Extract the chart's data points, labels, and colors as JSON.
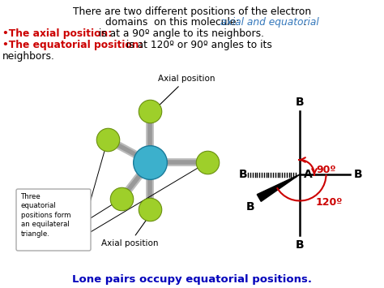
{
  "bg_color": "#ffffff",
  "title_line1": "There are two different positions of the electron",
  "title_line2_black": "domains  on this molecule: ",
  "title_italic": "axial and equatorial",
  "title_dot": ".",
  "bullet1_red": "•The axial position:",
  "bullet1_black": " is at a 90º angle to its neighbors.",
  "bullet2_red": "•The equatorial position:",
  "bullet2_black": " is at 120º or 90º angles to its",
  "bullet2_cont": "neighbors.",
  "axial_label_top": "Axial position",
  "axial_label_bot": "Axial position",
  "box_text": "Three\nequatorial\npositions form\nan equilateral\ntriangle.",
  "footer": "Lone pairs occupy equatorial positions.",
  "footer_color": "#0000bb",
  "red_color": "#cc0000",
  "blue_italic_color": "#3377bb",
  "green_sphere": "#9ecf2a",
  "green_edge": "#6a9010",
  "cyan_sphere": "#3cb0cc",
  "cyan_edge": "#1a7a99",
  "gray_rod": "#999999",
  "angle90_label": "90º",
  "angle120_label": "120º"
}
